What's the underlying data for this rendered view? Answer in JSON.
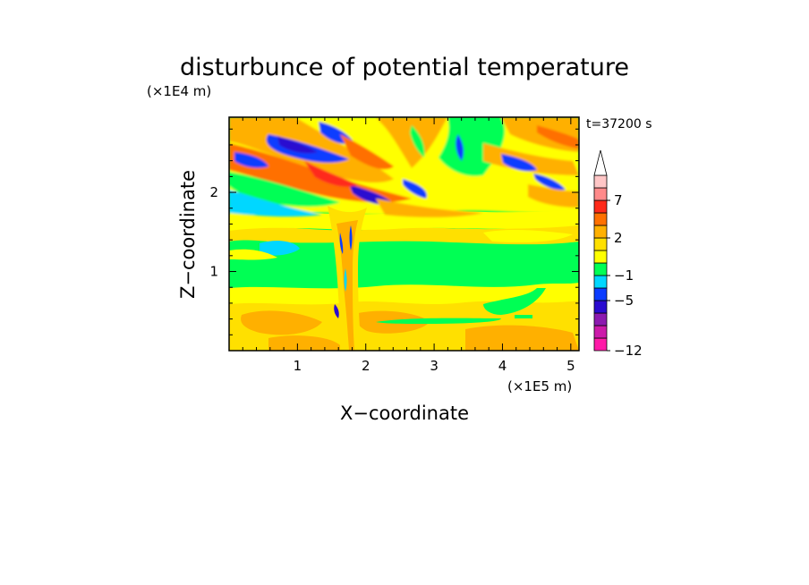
{
  "chart_data": {
    "type": "heatmap",
    "title": "disturbunce of potential temperature",
    "xlabel": "X−coordinate",
    "ylabel": "Z−coordinate",
    "x_unit": "(×1E5 m)",
    "y_unit": "(×1E4 m)",
    "time_label": "t=37200 s",
    "xlim": [
      0,
      5.12
    ],
    "ylim": [
      0,
      2.95
    ],
    "x_ticks": [
      1,
      2,
      3,
      4,
      5
    ],
    "y_ticks": [
      1,
      2
    ],
    "grid": false,
    "colorbar": {
      "levels": [
        -12,
        -11,
        -9,
        -7,
        -5,
        -3,
        -1,
        0,
        1,
        2,
        3,
        5,
        7,
        9,
        11
      ],
      "tick_labels": [
        "7",
        "2",
        "−1",
        "−5",
        "−12"
      ],
      "colors": [
        "#ff1aa8",
        "#cc1aaa",
        "#8c1ab0",
        "#2a0bd0",
        "#0b3cff",
        "#00d7ff",
        "#00ff54",
        "#ffff00",
        "#ffe000",
        "#ffb000",
        "#ff7000",
        "#ff2a1a",
        "#ff8a8a",
        "#ffc6c6"
      ],
      "extend_max": true
    },
    "note": "Filled-contour field of the potential temperature disturbance: a lower band of positive values (yellow/orange) below ~0.75E4 m, a broad near-zero band (green) between ~0.8E4 and 1.4E4 m, and alternating positive/negative streaks (orange/blue) sloping upward to the left above ~1.6E4 m, with a vertical plume near x≈1.6E5 m."
  }
}
